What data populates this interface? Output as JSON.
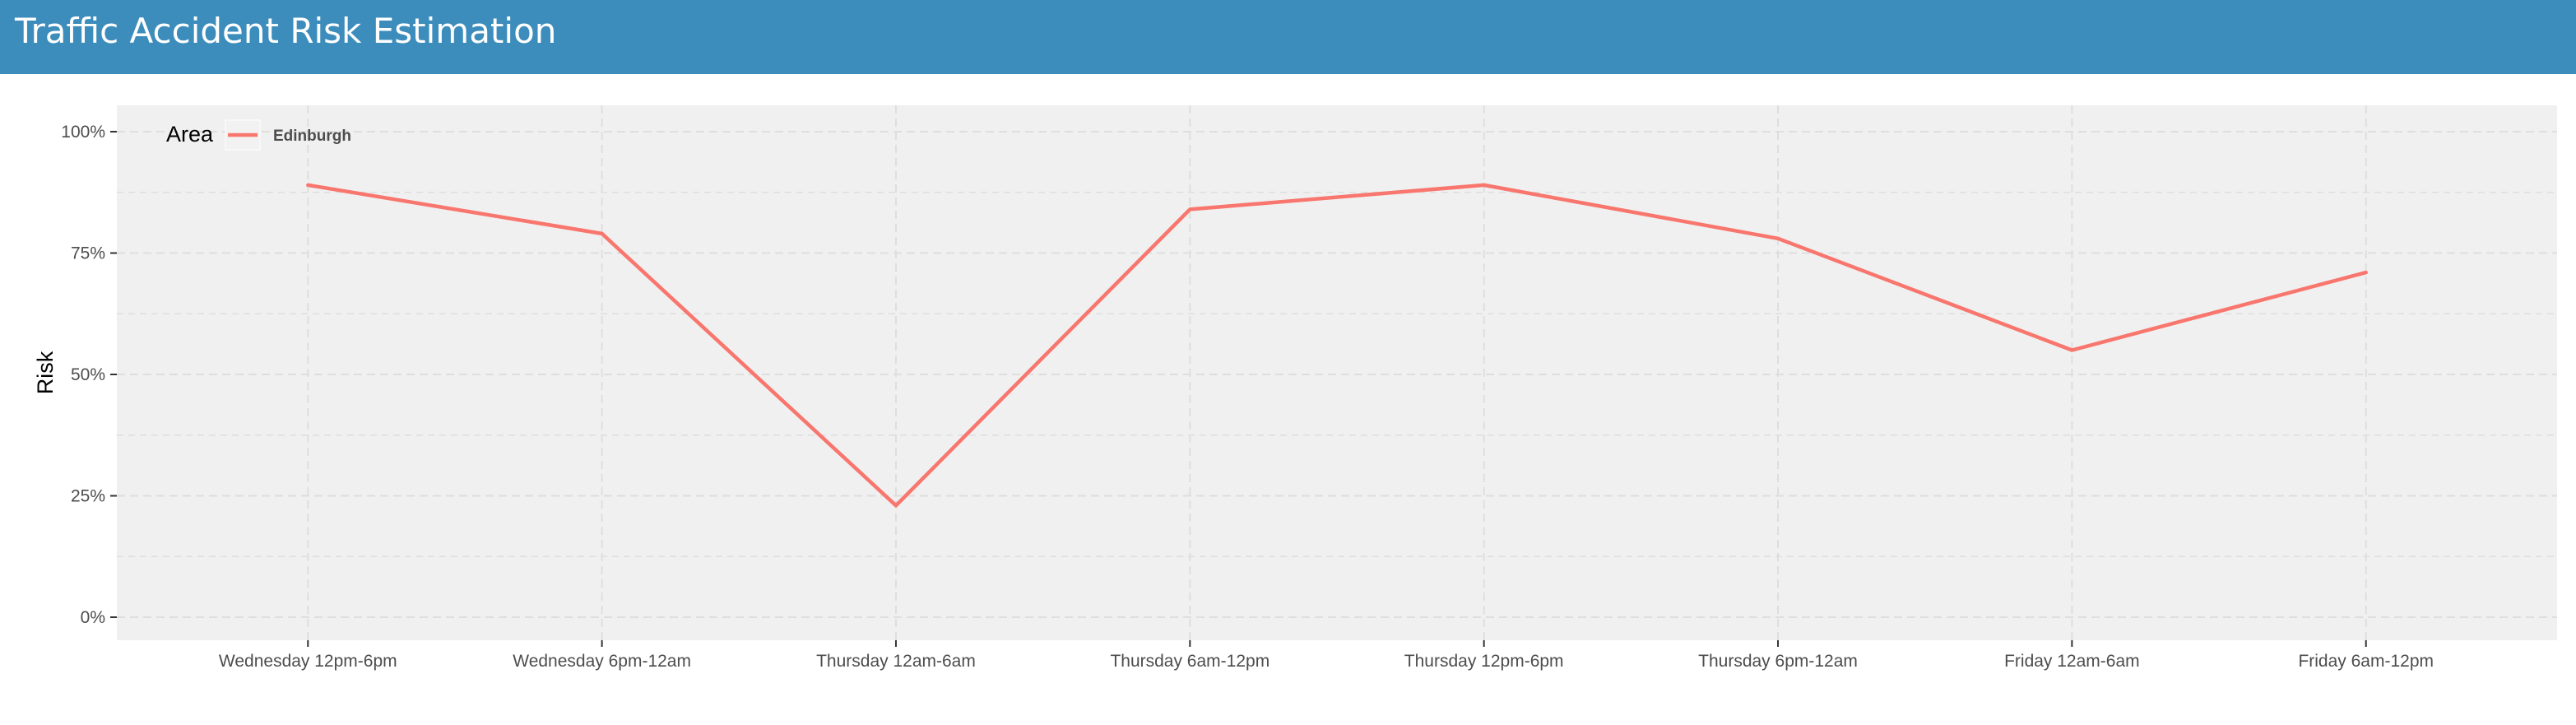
{
  "header": {
    "title": "Traffic Accident Risk Estimation"
  },
  "chart_data": {
    "type": "line",
    "title": "",
    "xlabel": "",
    "ylabel": "Risk",
    "ylim": [
      0,
      1
    ],
    "y_ticks": [
      0,
      0.25,
      0.5,
      0.75,
      1.0
    ],
    "y_tick_labels": [
      "0%",
      "25%",
      "50%",
      "75%",
      "100%"
    ],
    "grid": true,
    "legend": {
      "title": "Area",
      "position": "top-left"
    },
    "categories": [
      "Wednesday 12pm-6pm",
      "Wednesday 6pm-12am",
      "Thursday 12am-6am",
      "Thursday 6am-12pm",
      "Thursday 12pm-6pm",
      "Thursday 6pm-12am",
      "Friday 12am-6am",
      "Friday 6am-12pm"
    ],
    "series": [
      {
        "name": "Edinburgh",
        "color": "#f8766d",
        "values": [
          0.89,
          0.79,
          0.23,
          0.84,
          0.89,
          0.78,
          0.55,
          0.71
        ]
      }
    ]
  },
  "colors": {
    "header": "#3c8dbc",
    "panel": "#f0f0f0",
    "grid": "#dedede",
    "line": "#f8766d"
  }
}
